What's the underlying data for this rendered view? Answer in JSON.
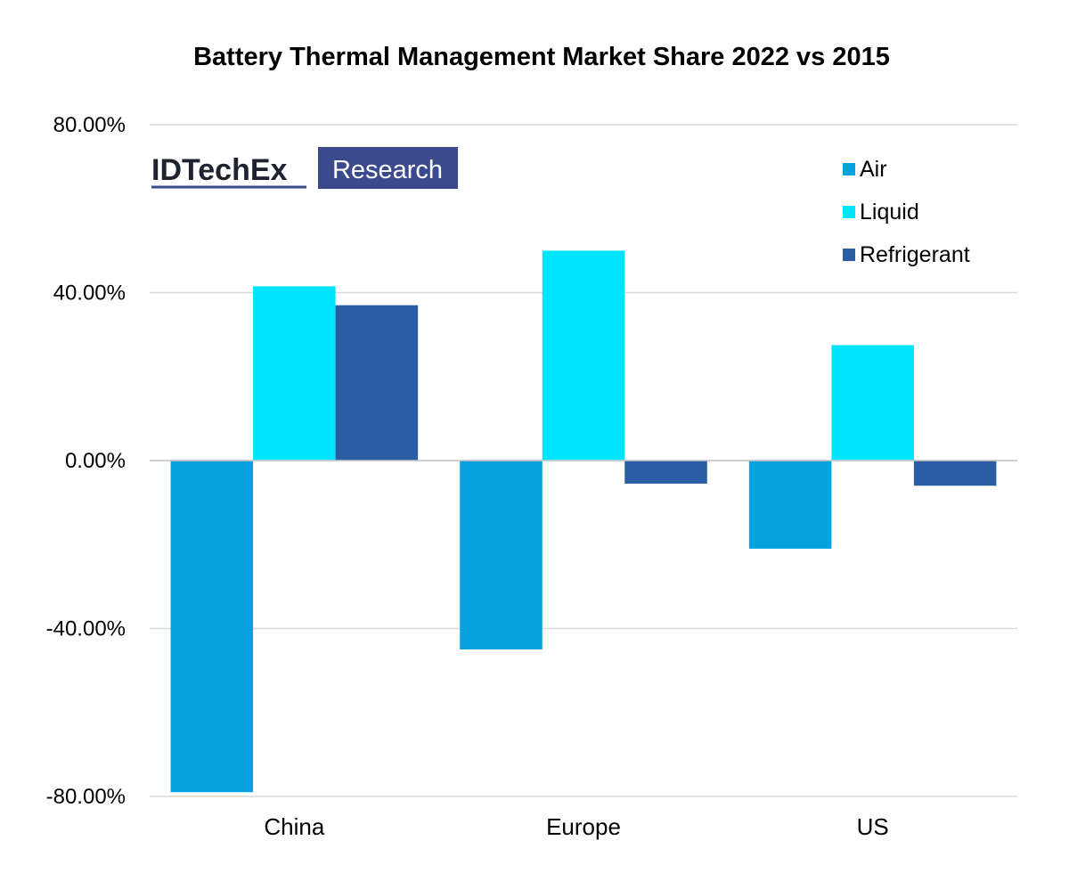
{
  "logo": {
    "brand": "IDTechEx",
    "tag": "Research",
    "colors": {
      "brand_text": "#1f2330",
      "tag_bg": "#3b4a8c",
      "tag_text": "#ffffff"
    }
  },
  "chart_data": {
    "type": "bar",
    "title": "Battery Thermal Management Market Share 2022 vs 2015",
    "xlabel": "",
    "ylabel": "",
    "categories": [
      "China",
      "Europe",
      "US"
    ],
    "series": [
      {
        "name": "Air",
        "color": "#06a2e0",
        "values": [
          -79,
          -45,
          -21
        ]
      },
      {
        "name": "Liquid",
        "color": "#00e5ff",
        "values": [
          41.5,
          50,
          27.5
        ]
      },
      {
        "name": "Refrigerant",
        "color": "#2a5da3",
        "values": [
          37,
          -5.5,
          -6
        ]
      }
    ],
    "ylim": [
      -80,
      80
    ],
    "yticks": [
      80,
      40,
      0,
      -40,
      -80
    ],
    "ytick_labels": [
      "80.00%",
      "40.00%",
      "0.00%",
      "-40.00%",
      "-80.00%"
    ],
    "grid": true,
    "legend_position": "top-right"
  }
}
